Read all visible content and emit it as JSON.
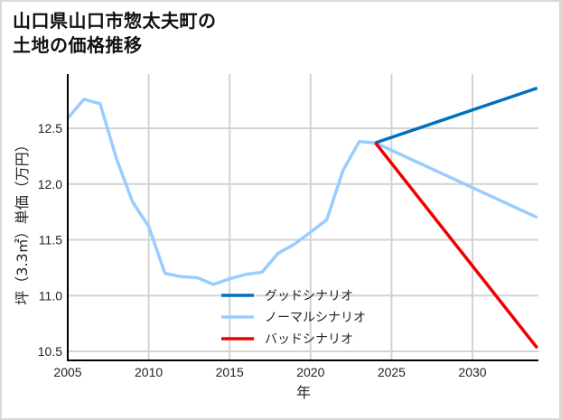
{
  "title": "山口県山口市惣太夫町の\n土地の価格推移",
  "colors": {
    "good": "#0070c0",
    "normal": "#99ccff",
    "bad": "#ee0000",
    "grid": "#d3d3d3",
    "axis": "#000000"
  },
  "chart_data": {
    "type": "line",
    "title": "山口県山口市惣太夫町の土地の価格推移",
    "xlabel": "年",
    "ylabel": "坪（3.3㎡）単価（万円）",
    "xlim": [
      2005,
      2034
    ],
    "ylim": [
      10.4,
      13.0
    ],
    "xticks": [
      2005,
      2010,
      2015,
      2020,
      2025,
      2030
    ],
    "yticks": [
      10.5,
      11.0,
      11.5,
      12.0,
      12.5
    ],
    "grid": true,
    "legend_position": "center-bottom",
    "series": [
      {
        "name": "グッドシナリオ",
        "color": "#0070c0",
        "x": [
          2024,
          2034
        ],
        "values": [
          12.37,
          12.86
        ]
      },
      {
        "name": "ノーマルシナリオ",
        "color": "#99ccff",
        "x": [
          2005,
          2006,
          2007,
          2008,
          2009,
          2010,
          2011,
          2012,
          2013,
          2014,
          2015,
          2016,
          2017,
          2018,
          2019,
          2020,
          2021,
          2022,
          2023,
          2024,
          2034
        ],
        "values": [
          12.59,
          12.76,
          12.72,
          12.23,
          11.84,
          11.62,
          11.2,
          11.17,
          11.16,
          11.1,
          11.15,
          11.19,
          11.21,
          11.38,
          11.46,
          11.57,
          11.68,
          12.12,
          12.38,
          12.37,
          11.7
        ]
      },
      {
        "name": "バッドシナリオ",
        "color": "#ee0000",
        "x": [
          2024,
          2034
        ],
        "values": [
          12.37,
          10.53
        ]
      }
    ]
  }
}
